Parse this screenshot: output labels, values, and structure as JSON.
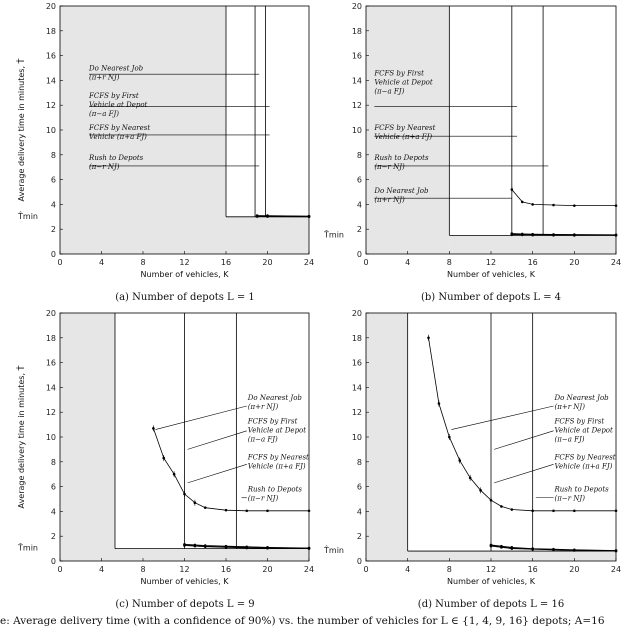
{
  "figure": {
    "bottom_caption": "e: Average delivery time (with a confidence of 90%) vs. the number of vehicles for L ∈ {1, 4, 9, 16} depots; A=16"
  },
  "chart_data": [
    {
      "type": "line",
      "panel": "a",
      "caption": "(a) Number of depots L = 1",
      "xlabel": "Number of vehicles, K",
      "ylabel": "Average delivery time in minutes, T̂",
      "tmin_label": "T̂min",
      "xlim": [
        0,
        24
      ],
      "ylim": [
        0,
        20
      ],
      "xticks": [
        0,
        4,
        8,
        12,
        16,
        20,
        24
      ],
      "yticks": [
        0,
        2,
        4,
        6,
        8,
        10,
        12,
        14,
        16,
        18,
        20
      ],
      "tmin": 3.0,
      "shade_x_end": 16,
      "vlines": [
        16,
        18.8,
        19.8
      ],
      "box_right": 24,
      "series": [
        {
          "name": "Do Nearest Job",
          "x": [
            19,
            20,
            24
          ],
          "y": [
            3.1,
            3.1,
            3.05
          ]
        },
        {
          "name": "FCFS by First Vehicle at Depot",
          "x": [
            19,
            20,
            24
          ],
          "y": [
            3.08,
            3.07,
            3.04
          ]
        },
        {
          "name": "FCFS by Nearest Vehicle",
          "x": [
            19,
            20,
            24
          ],
          "y": [
            3.05,
            3.04,
            3.02
          ]
        },
        {
          "name": "Rush to Depots",
          "x": [
            19,
            20,
            24
          ],
          "y": [
            3.02,
            3.02,
            3.0
          ]
        }
      ],
      "annotations": [
        {
          "lines": [
            "Do Nearest Job",
            "(π+r NJ)"
          ],
          "label_x": 2.8,
          "label_y": 14.8,
          "line_y": 14.5,
          "target": [
            19.2,
            14.5
          ]
        },
        {
          "lines": [
            "FCFS by First",
            "Vehicle at Depot",
            "(π−a FJ)"
          ],
          "label_x": 2.8,
          "label_y": 12.6,
          "line_y": 11.9,
          "target": [
            20.2,
            11.9
          ]
        },
        {
          "lines": [
            "FCFS by Nearest",
            "Vehicle (π+a FJ)"
          ],
          "label_x": 2.8,
          "label_y": 10.0,
          "line_y": 9.6,
          "target": [
            20.2,
            9.6
          ]
        },
        {
          "lines": [
            "Rush to Depots",
            "(π−r NJ)"
          ],
          "label_x": 2.8,
          "label_y": 7.6,
          "line_y": 7.1,
          "target": [
            19.2,
            7.1
          ]
        }
      ]
    },
    {
      "type": "line",
      "panel": "b",
      "caption": "(b) Number of depots L = 4",
      "xlabel": "Number of vehicles, K",
      "ylabel": "",
      "tmin_label": "T̂min",
      "xlim": [
        0,
        24
      ],
      "ylim": [
        0,
        20
      ],
      "xticks": [
        0,
        4,
        8,
        12,
        16,
        20,
        24
      ],
      "yticks": [
        0,
        2,
        4,
        6,
        8,
        10,
        12,
        14,
        16,
        18,
        20
      ],
      "tmin": 1.5,
      "shade_x_end": 8,
      "vlines": [
        8,
        14,
        17
      ],
      "box_right": 24,
      "series": [
        {
          "name": "Do Nearest Job",
          "x": [
            14,
            15,
            16,
            18,
            20,
            24
          ],
          "y": [
            5.2,
            4.2,
            4.0,
            3.95,
            3.9,
            3.9
          ]
        },
        {
          "name": "FCFS by First Vehicle at Depot",
          "x": [
            14,
            15,
            16,
            18,
            20,
            24
          ],
          "y": [
            1.65,
            1.62,
            1.6,
            1.58,
            1.57,
            1.55
          ]
        },
        {
          "name": "FCFS by Nearest Vehicle",
          "x": [
            14,
            15,
            16,
            18,
            20,
            24
          ],
          "y": [
            1.6,
            1.58,
            1.56,
            1.55,
            1.54,
            1.52
          ]
        },
        {
          "name": "Rush to Depots",
          "x": [
            14,
            15,
            16,
            18,
            20,
            24
          ],
          "y": [
            1.55,
            1.54,
            1.52,
            1.51,
            1.5,
            1.5
          ]
        }
      ],
      "annotations": [
        {
          "lines": [
            "FCFS by First",
            "Vehicle at Depot",
            "(π−a FJ)"
          ],
          "label_x": 0.8,
          "label_y": 14.4,
          "line_y": 11.9,
          "target": [
            14.5,
            11.9
          ]
        },
        {
          "lines": [
            "FCFS by Nearest",
            "Vehicle (π+a FJ)"
          ],
          "label_x": 0.8,
          "label_y": 10.0,
          "line_y": 9.5,
          "target": [
            14.5,
            9.5
          ]
        },
        {
          "lines": [
            "Rush to Depots",
            "(π−r NJ)"
          ],
          "label_x": 0.8,
          "label_y": 7.6,
          "line_y": 7.1,
          "target": [
            17.5,
            7.1
          ]
        },
        {
          "lines": [
            "Do Nearest Job",
            "(π+r NJ)"
          ],
          "label_x": 0.8,
          "label_y": 4.9,
          "line_y": 4.5,
          "target": [
            14.0,
            4.5
          ]
        }
      ]
    },
    {
      "type": "line",
      "panel": "c",
      "caption": "(c) Number of depots L = 9",
      "xlabel": "Number of vehicles, K",
      "ylabel": "Average delivery time in minutes, T̂",
      "tmin_label": "T̂min",
      "xlim": [
        0,
        24
      ],
      "ylim": [
        0,
        20
      ],
      "xticks": [
        0,
        4,
        8,
        12,
        16,
        20,
        24
      ],
      "yticks": [
        0,
        2,
        4,
        6,
        8,
        10,
        12,
        14,
        16,
        18,
        20
      ],
      "tmin": 1.0,
      "shade_x_end": 5.3,
      "vlines": [
        5.3,
        12,
        17
      ],
      "box_right": 24,
      "series": [
        {
          "name": "Do Nearest Job",
          "x": [
            9,
            10,
            11,
            12,
            13,
            14,
            16,
            18,
            20,
            24
          ],
          "y": [
            10.7,
            8.3,
            7.0,
            5.4,
            4.7,
            4.3,
            4.1,
            4.05,
            4.05,
            4.05
          ]
        },
        {
          "name": "FCFS by First Vehicle at Depot",
          "x": [
            12,
            13,
            14,
            16,
            18,
            20,
            24
          ],
          "y": [
            1.35,
            1.3,
            1.25,
            1.2,
            1.15,
            1.1,
            1.05
          ]
        },
        {
          "name": "FCFS by Nearest Vehicle",
          "x": [
            12,
            13,
            14,
            16,
            18,
            20,
            24
          ],
          "y": [
            1.3,
            1.25,
            1.2,
            1.15,
            1.1,
            1.08,
            1.03
          ]
        },
        {
          "name": "Rush to Depots",
          "x": [
            12,
            13,
            14,
            16,
            18,
            20,
            24
          ],
          "y": [
            1.25,
            1.2,
            1.15,
            1.1,
            1.05,
            1.03,
            1.0
          ]
        }
      ],
      "annotations": [
        {
          "lines": [
            "Do Nearest Job",
            "(π+r NJ)"
          ],
          "label_x": 18.1,
          "label_y": 13.0,
          "line_y": 12.5,
          "target": [
            9.2,
            10.6
          ]
        },
        {
          "lines": [
            "FCFS by First",
            "Vehicle at Depot",
            "(π−a FJ)"
          ],
          "label_x": 18.1,
          "label_y": 11.1,
          "line_y": 10.5,
          "target": [
            12.3,
            9.0
          ]
        },
        {
          "lines": [
            "FCFS by Nearest",
            "Vehicle (π+a FJ)"
          ],
          "label_x": 18.1,
          "label_y": 8.2,
          "line_y": 7.8,
          "target": [
            12.3,
            6.3
          ]
        },
        {
          "lines": [
            "Rush to Depots",
            "(π−r NJ)"
          ],
          "label_x": 18.1,
          "label_y": 5.6,
          "line_y": 5.1,
          "target": [
            17.5,
            5.1
          ]
        }
      ]
    },
    {
      "type": "line",
      "panel": "d",
      "caption": "(d) Number of depots L = 16",
      "xlabel": "Number of vehicles, K",
      "ylabel": "",
      "tmin_label": "T̂min",
      "xlim": [
        0,
        24
      ],
      "ylim": [
        0,
        20
      ],
      "xticks": [
        0,
        4,
        8,
        12,
        16,
        20,
        24
      ],
      "yticks": [
        0,
        2,
        4,
        6,
        8,
        10,
        12,
        14,
        16,
        18,
        20
      ],
      "tmin": 0.8,
      "shade_x_end": 4,
      "vlines": [
        4,
        12,
        16
      ],
      "box_right": 24,
      "series": [
        {
          "name": "Do Nearest Job",
          "x": [
            6,
            7,
            8,
            9,
            10,
            11,
            12,
            13,
            14,
            16,
            18,
            20,
            24
          ],
          "y": [
            18.0,
            12.7,
            10.0,
            8.1,
            6.7,
            5.7,
            4.9,
            4.4,
            4.15,
            4.05,
            4.05,
            4.05,
            4.05
          ]
        },
        {
          "name": "FCFS by First Vehicle at Depot",
          "x": [
            12,
            13,
            14,
            16,
            18,
            20,
            24
          ],
          "y": [
            1.3,
            1.2,
            1.1,
            1.0,
            0.95,
            0.9,
            0.85
          ]
        },
        {
          "name": "FCFS by Nearest Vehicle",
          "x": [
            12,
            13,
            14,
            16,
            18,
            20,
            24
          ],
          "y": [
            1.25,
            1.15,
            1.05,
            0.97,
            0.92,
            0.88,
            0.83
          ]
        },
        {
          "name": "Rush to Depots",
          "x": [
            12,
            13,
            14,
            16,
            18,
            20,
            24
          ],
          "y": [
            1.2,
            1.1,
            1.0,
            0.95,
            0.9,
            0.85,
            0.8
          ]
        }
      ],
      "annotations": [
        {
          "lines": [
            "Do Nearest Job",
            "(π+r NJ)"
          ],
          "label_x": 18.1,
          "label_y": 13.0,
          "line_y": 12.5,
          "target": [
            8.2,
            10.6
          ]
        },
        {
          "lines": [
            "FCFS by First",
            "Vehicle at Depot",
            "(π−a FJ)"
          ],
          "label_x": 18.1,
          "label_y": 11.1,
          "line_y": 10.5,
          "target": [
            12.3,
            9.0
          ]
        },
        {
          "lines": [
            "FCFS by Nearest",
            "Vehicle (π+a FJ)"
          ],
          "label_x": 18.1,
          "label_y": 8.2,
          "line_y": 7.8,
          "target": [
            12.3,
            6.3
          ]
        },
        {
          "lines": [
            "Rush to Depots",
            "(π−r NJ)"
          ],
          "label_x": 18.1,
          "label_y": 5.6,
          "line_y": 5.1,
          "target": [
            16.3,
            5.1
          ]
        }
      ]
    }
  ]
}
